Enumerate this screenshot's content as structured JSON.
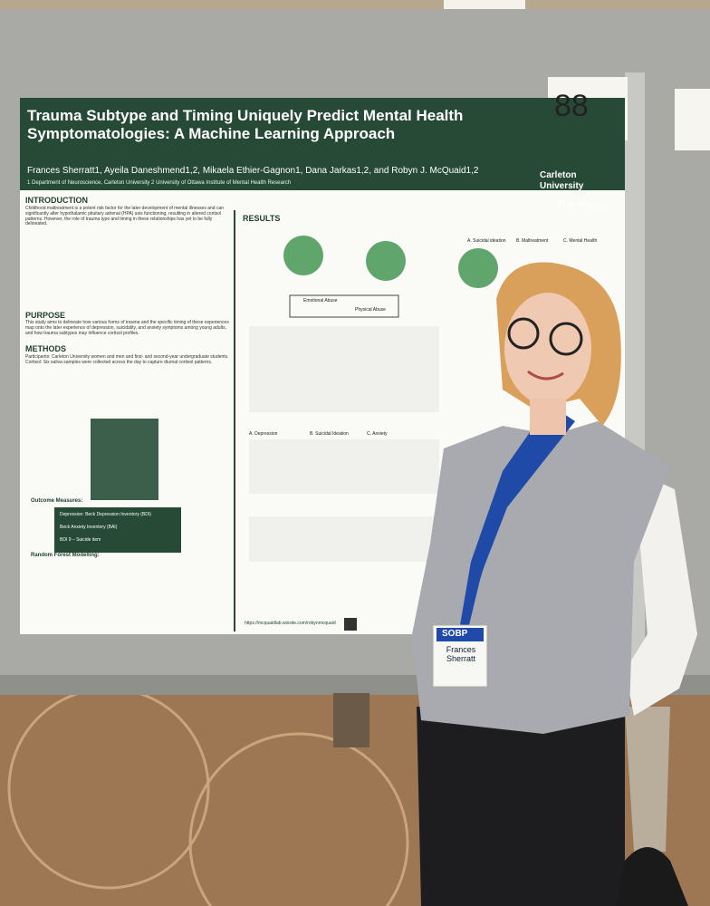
{
  "board_number": "88",
  "poster": {
    "title": "Trauma Subtype and Timing Uniquely Predict Mental Health Symptomatologies: A Machine Learning Approach",
    "authors": "Frances Sherratt1, Ayeila Daneshmend1,2, Mikaela Ethier-Gagnon1, Dana Jarkas1,2, and Robyn J. McQuaid1,2",
    "affiliations": "1 Department of Neuroscience, Carleton University 2 University of Ottawa Institute of Mental Health Research",
    "logos": [
      "Carleton University",
      "The Royal"
    ],
    "introduction": {
      "heading": "INTRODUCTION",
      "text": "Childhood maltreatment is a potent risk factor for the later development of mental illnesses and can significantly alter hypothalamic pituitary adrenal (HPA) axis functioning, resulting in altered cortisol patterns. However, the role of trauma type and timing in these relationships has yet to be fully delineated."
    },
    "purpose": {
      "heading": "PURPOSE",
      "text": "This study aims to delineate how various forms of trauma and the specific timing of these experiences map onto the later experience of depression, suicidality, and anxiety symptoms among young adults, and how trauma subtypes may influence cortisol profiles."
    },
    "methods": {
      "heading": "METHODS",
      "text": "Participants: Carleton University women and men and first- and second-year undergraduate students. Cortisol: Six saliva samples were collected across the day to capture diurnal cortisol patterns."
    },
    "outcome_measures": {
      "heading": "Outcome Measures:",
      "items": [
        "Depression: Beck Depression Inventory (BDI)",
        "Beck Anxiety Inventory (BAI)",
        "BDI 9 – Suicide item"
      ]
    },
    "random_forest": {
      "heading": "Random Forest Modelling:"
    },
    "results": {
      "heading": "RESULTS",
      "panels": [
        "A. Suicidal ideation",
        "B. Maltreatment",
        "C. Mental Health",
        "A. Depression",
        "B. Suicidal Ideation",
        "C. Anxiety"
      ],
      "legend": [
        "Emotional Abuse",
        "Physical Abuse"
      ]
    },
    "url": "https://mcquaidlab.wixsite.com/robynmcquaid"
  },
  "badge": {
    "org": "SOBP",
    "name": "Frances Sherratt"
  }
}
